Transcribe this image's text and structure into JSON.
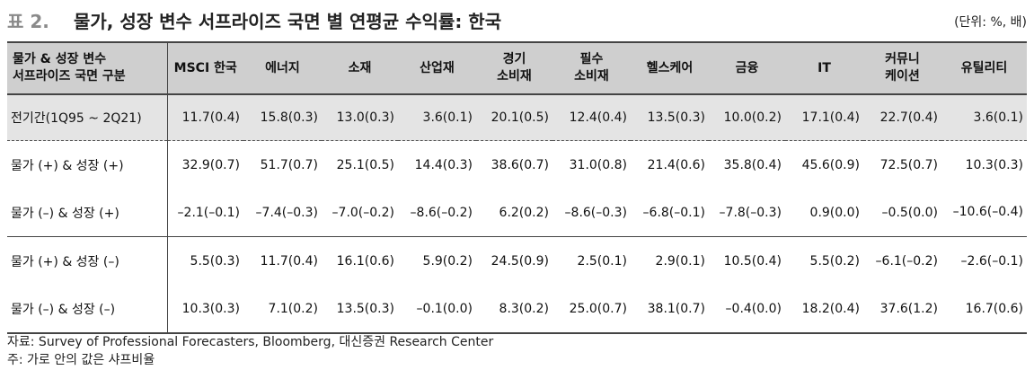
{
  "title": {
    "prefix": "표 2.",
    "text": "물가, 성장 변수 서프라이즈 국면 별 연평균 수익률: 한국",
    "unit": "(단위: %, 배)"
  },
  "table": {
    "corner": [
      "물가 & 성장 변수",
      "서프라이즈 국면 구분"
    ],
    "columns": [
      [
        "MSCI 한국"
      ],
      [
        "에너지"
      ],
      [
        "소재"
      ],
      [
        "산업재"
      ],
      [
        "경기",
        "소비재"
      ],
      [
        "필수",
        "소비재"
      ],
      [
        "헬스케어"
      ],
      [
        "금융"
      ],
      [
        "IT"
      ],
      [
        "커뮤니",
        "케이션"
      ],
      [
        "유틸리티"
      ]
    ],
    "rows": [
      {
        "label": "전기간(1Q95 ~ 2Q21)",
        "cells": [
          "11.7(0.4)",
          "15.8(0.3)",
          "13.0(0.3)",
          "3.6(0.1)",
          "20.1(0.5)",
          "12.4(0.4)",
          "13.5(0.3)",
          "10.0(0.2)",
          "17.1(0.4)",
          "22.7(0.4)",
          "3.6(0.1)"
        ]
      },
      {
        "label": "물가 (+) & 성장 (+)",
        "cells": [
          "32.9(0.7)",
          "51.7(0.7)",
          "25.1(0.5)",
          "14.4(0.3)",
          "38.6(0.7)",
          "31.0(0.8)",
          "21.4(0.6)",
          "35.8(0.4)",
          "45.6(0.9)",
          "72.5(0.7)",
          "10.3(0.3)"
        ]
      },
      {
        "label": "물가 (–) & 성장 (+)",
        "cells": [
          "–2.1(–0.1)",
          "–7.4(–0.3)",
          "–7.0(–0.2)",
          "–8.6(–0.2)",
          "6.2(0.2)",
          "–8.6(–0.3)",
          "–6.8(–0.1)",
          "–7.8(–0.3)",
          "0.9(0.0)",
          "–0.5(0.0)",
          "–10.6(–0.4)"
        ]
      },
      {
        "label": "물가 (+) & 성장 (–)",
        "cells": [
          "5.5(0.3)",
          "11.7(0.4)",
          "16.1(0.6)",
          "5.9(0.2)",
          "24.5(0.9)",
          "2.5(0.1)",
          "2.9(0.1)",
          "10.5(0.4)",
          "5.5(0.2)",
          "–6.1(–0.2)",
          "–2.6(–0.1)"
        ]
      },
      {
        "label": "물가 (–) & 성장 (–)",
        "cells": [
          "10.3(0.3)",
          "7.1(0.2)",
          "13.5(0.3)",
          "–0.1(0.0)",
          "8.3(0.2)",
          "25.0(0.7)",
          "38.1(0.7)",
          "–0.4(0.0)",
          "18.2(0.4)",
          "37.6(1.2)",
          "16.7(0.6)"
        ]
      }
    ]
  },
  "footer": {
    "source": "자료: Survey of Professional Forecasters, Bloomberg, 대신증권 Research Center",
    "note": "주: 가로 안의 값은 샤프비율"
  }
}
